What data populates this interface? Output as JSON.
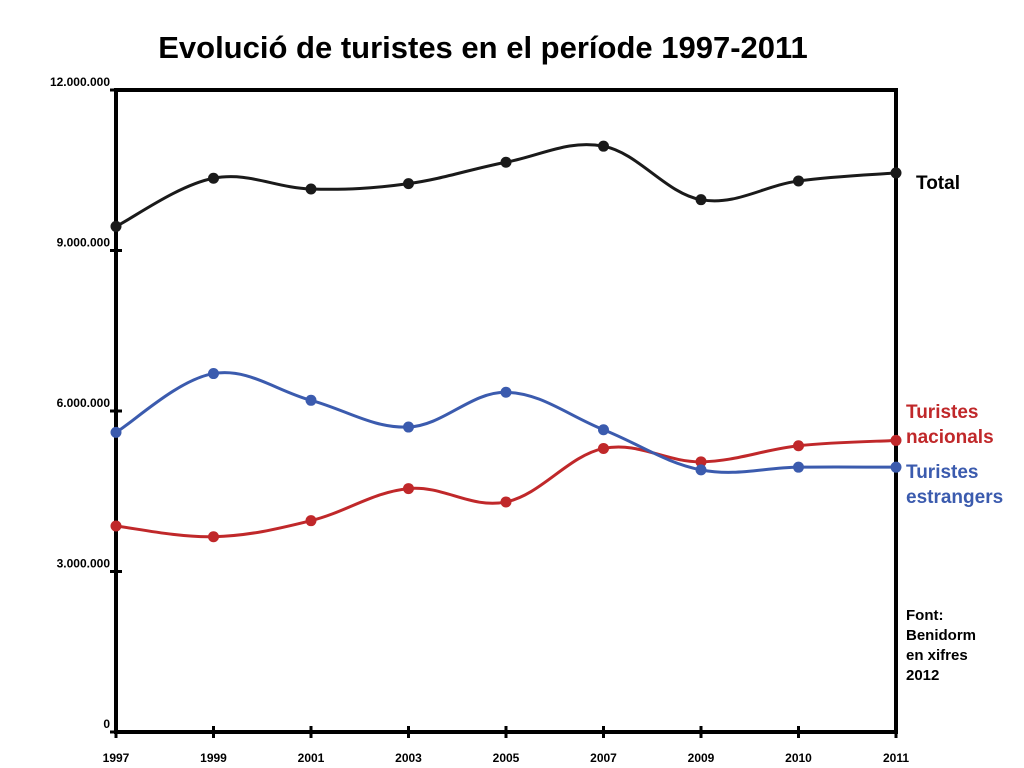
{
  "chart_data": {
    "type": "line",
    "title": "Evolució de turistes en el període 1997-2011",
    "xlabel": "",
    "ylabel": "",
    "categories": [
      "1997",
      "1999",
      "2001",
      "2003",
      "2005",
      "2007",
      "2009",
      "2010",
      "2011"
    ],
    "ylim": [
      0,
      12000000
    ],
    "yticks": [
      0,
      3000000,
      6000000,
      9000000,
      12000000
    ],
    "ytick_labels": [
      "0",
      "3.000.000",
      "6.000.000",
      "9.000.000",
      "12.000.000"
    ],
    "grid": false,
    "series": [
      {
        "name": "Total",
        "label_lines": [
          "Total"
        ],
        "color": "#1a1a1a",
        "values": [
          9450000,
          10350000,
          10150000,
          10250000,
          10650000,
          10950000,
          9950000,
          10300000,
          10450000
        ]
      },
      {
        "name": "Turistes nacionals",
        "label_lines": [
          "Turistes",
          "nacionals"
        ],
        "color": "#c0282a",
        "values": [
          3850000,
          3650000,
          3950000,
          4550000,
          4300000,
          5300000,
          5050000,
          5350000,
          5450000
        ]
      },
      {
        "name": "Turistes estrangers",
        "label_lines": [
          "Turistes",
          "estrangers"
        ],
        "color": "#3b5bae",
        "values": [
          5600000,
          6700000,
          6200000,
          5700000,
          6350000,
          5650000,
          4900000,
          4950000,
          4950000
        ]
      }
    ],
    "source_lines": [
      "Font:",
      "Benidorm",
      "en xifres",
      "2012"
    ]
  }
}
